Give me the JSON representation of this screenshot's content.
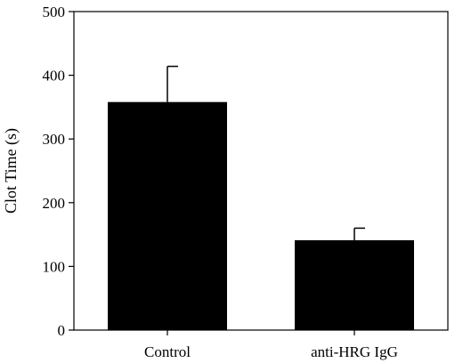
{
  "chart_data": {
    "type": "bar",
    "categories": [
      "Control",
      "anti-HRG IgG"
    ],
    "values": [
      358,
      141
    ],
    "errors": [
      56,
      19
    ],
    "title": "",
    "xlabel": "",
    "ylabel": "Clot Time (s)",
    "ylim": [
      0,
      500
    ],
    "yticks": [
      "0",
      "100",
      "200",
      "300",
      "400",
      "500"
    ],
    "grid": false,
    "legend": "none",
    "colors": {
      "bar": "#000000",
      "axis": "#000000",
      "background": "#ffffff"
    }
  }
}
